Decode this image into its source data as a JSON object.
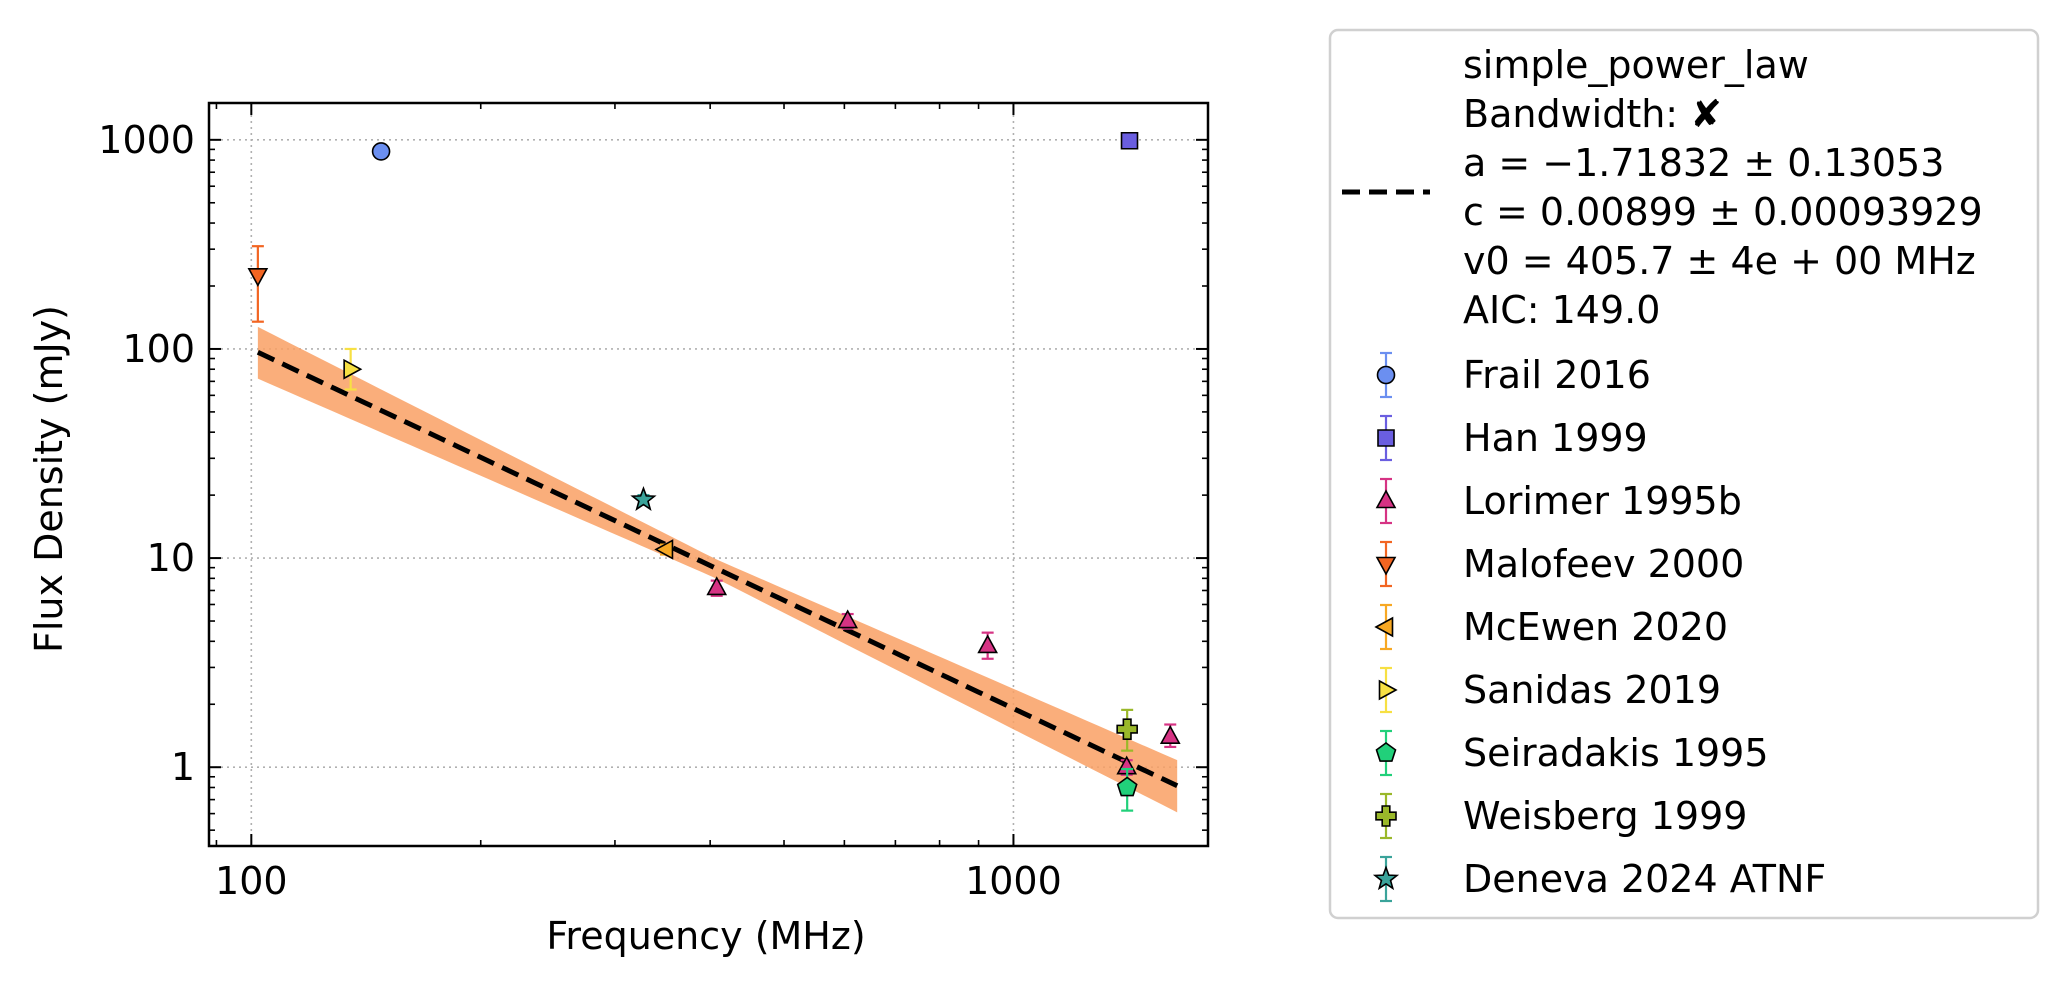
{
  "chart_data": {
    "type": "scatter",
    "xlabel": "Frequency (MHz)",
    "ylabel": "Flux Density (mJy)",
    "x_scale": "log",
    "y_scale": "log",
    "xlim": [
      88,
      1800
    ],
    "ylim": [
      0.42,
      1500
    ],
    "x_ticks": [
      100,
      1000
    ],
    "x_tick_labels": [
      "100",
      "1000"
    ],
    "y_ticks": [
      1,
      10,
      100,
      1000
    ],
    "y_tick_labels": [
      "1",
      "10",
      "100",
      "1000"
    ],
    "grid": "major, dotted",
    "legend_placement": "outside right",
    "fit": {
      "model": "simple_power_law",
      "label_lines": [
        "simple_power_law",
        "Bandwidth: ✘",
        "a = −1.71832 ± 0.13053",
        "c = 0.00899 ± 0.00093929",
        "v0 = 405.7 ± 4e + 00 MHz",
        "AIC: 149.0"
      ],
      "a": -1.71832,
      "c": 0.00899,
      "v0": 405.7,
      "x_range": [
        102,
        1640
      ],
      "band_color": "#f9a064",
      "line_color": "#000000"
    },
    "series": [
      {
        "name": "Frail 2016",
        "marker": "circle",
        "color": "#6b8ff0",
        "points": [
          {
            "x": 148,
            "y": 880,
            "lo": 880,
            "hi": 880
          }
        ]
      },
      {
        "name": "Han 1999",
        "marker": "square",
        "color": "#6a5ee0",
        "points": [
          {
            "x": 1420,
            "y": 990,
            "lo": 990,
            "hi": 990
          }
        ]
      },
      {
        "name": "Lorimer 1995b",
        "marker": "triangle-up",
        "color": "#d63384",
        "points": [
          {
            "x": 408,
            "y": 7.2,
            "lo": 6.6,
            "hi": 7.8
          },
          {
            "x": 606,
            "y": 5.0,
            "lo": 4.6,
            "hi": 5.4
          },
          {
            "x": 925,
            "y": 3.8,
            "lo": 3.3,
            "hi": 4.4
          },
          {
            "x": 1408,
            "y": 1.0,
            "lo": 0.92,
            "hi": 1.08
          },
          {
            "x": 1606,
            "y": 1.4,
            "lo": 1.25,
            "hi": 1.6
          }
        ]
      },
      {
        "name": "Malofeev 2000",
        "marker": "triangle-down",
        "color": "#f26522",
        "points": [
          {
            "x": 102,
            "y": 225,
            "lo": 135,
            "hi": 310
          }
        ]
      },
      {
        "name": "McEwen 2020",
        "marker": "triangle-left",
        "color": "#f7a823",
        "points": [
          {
            "x": 350,
            "y": 11,
            "lo": 10.4,
            "hi": 11.6
          }
        ]
      },
      {
        "name": "Sanidas 2019",
        "marker": "triangle-right",
        "color": "#f7e043",
        "points": [
          {
            "x": 135,
            "y": 80,
            "lo": 64,
            "hi": 100
          }
        ]
      },
      {
        "name": "Seiradakis 1995",
        "marker": "pentagon",
        "color": "#21d07a",
        "points": [
          {
            "x": 1410,
            "y": 0.8,
            "lo": 0.62,
            "hi": 0.98
          }
        ]
      },
      {
        "name": "Weisberg 1999",
        "marker": "plus",
        "color": "#9ab82a",
        "points": [
          {
            "x": 1410,
            "y": 1.52,
            "lo": 1.2,
            "hi": 1.88
          }
        ]
      },
      {
        "name": "Deneva 2024 ATNF",
        "marker": "star",
        "color": "#3aa39a",
        "points": [
          {
            "x": 327,
            "y": 19,
            "lo": 18,
            "hi": 20
          }
        ]
      }
    ]
  }
}
